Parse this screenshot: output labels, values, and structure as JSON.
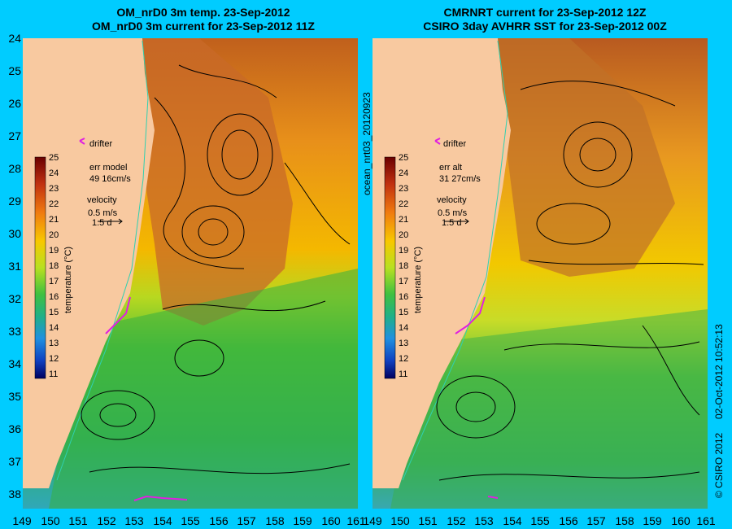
{
  "left_panel": {
    "title_line1": "OM_nrD0 3m temp. 23-Sep-2012",
    "title_line2": "OM_nrD0 3m current for 23-Sep-2012 11Z",
    "drifter_label": "drifter",
    "err_label": "err model",
    "err_value": "49 16cm/s",
    "velocity_label": "velocity",
    "velocity_scale": "0.5 m/s",
    "velocity_time": "1.5 d"
  },
  "right_panel": {
    "title_line1": "CMRNRT current for 23-Sep-2012 12Z",
    "title_line2": "CSIRO 3day AVHRR SST for 23-Sep-2012 00Z",
    "drifter_label": "drifter",
    "err_label": "err alt",
    "err_value": "31 27cm/s",
    "velocity_label": "velocity",
    "velocity_scale": "0.5 m/s",
    "velocity_time": "1.5 d"
  },
  "colorbar": {
    "label": "temperature (°C)",
    "ticks": [
      "25",
      "24",
      "23",
      "22",
      "21",
      "20",
      "19",
      "18",
      "17",
      "16",
      "15",
      "14",
      "13",
      "12",
      "11"
    ]
  },
  "latitude_ticks": [
    "24",
    "25",
    "26",
    "27",
    "28",
    "29",
    "30",
    "31",
    "32",
    "33",
    "34",
    "35",
    "36",
    "37",
    "38"
  ],
  "longitude_ticks": [
    "149",
    "150",
    "151",
    "152",
    "153",
    "154",
    "155",
    "156",
    "157",
    "158",
    "159",
    "160",
    "161"
  ],
  "side_text_middle": "ocean_nrt03_20120923",
  "side_text_right_date": "02-Oct-2012 10:52:13",
  "side_text_right_copyright": "© CSIRO 2012",
  "colors": {
    "background": "#00ccff",
    "land": "#f8c9a0",
    "warm": "#c8642a",
    "mid": "#f0b400",
    "cool": "#30b440",
    "drifter": "#e020e0"
  }
}
